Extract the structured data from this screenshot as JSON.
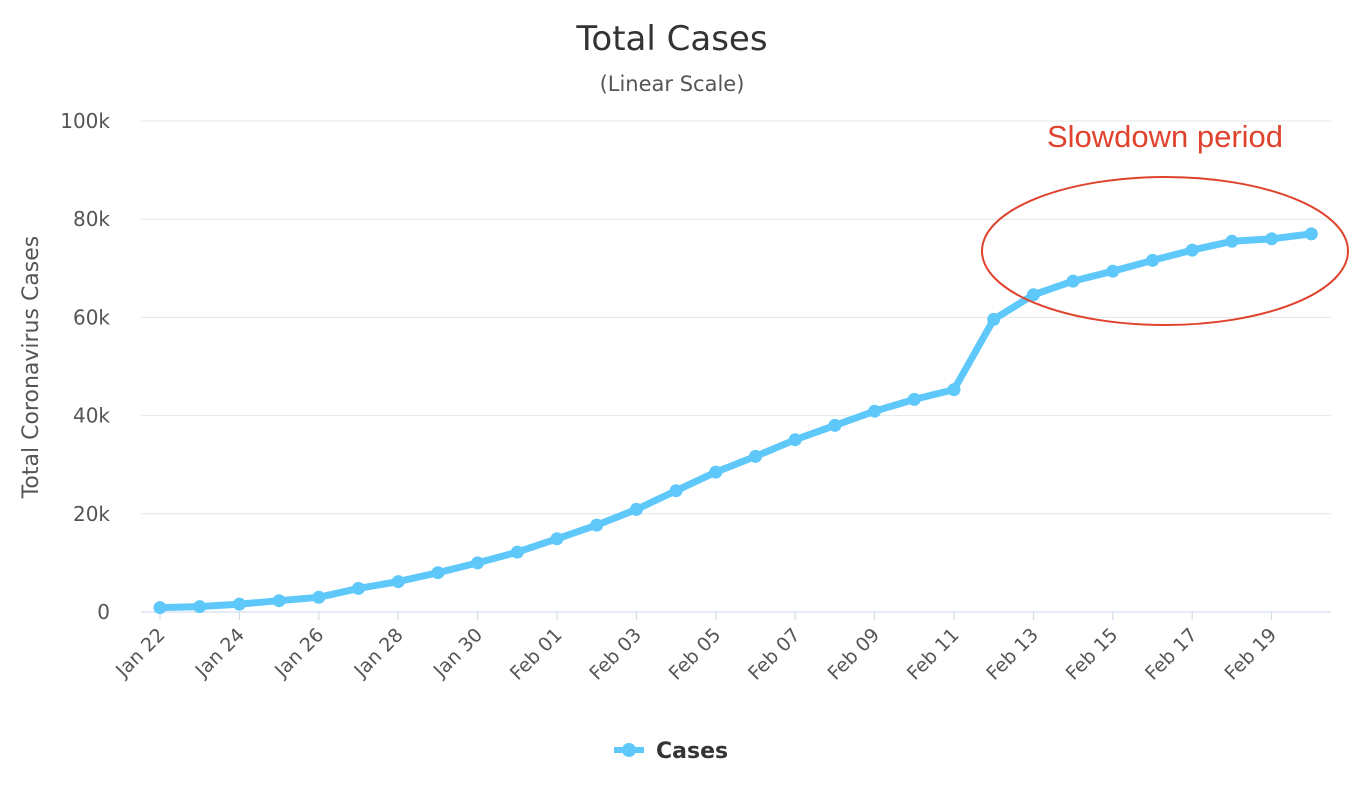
{
  "colors": {
    "series": "#5ec8fa",
    "annotation": "#e0432d",
    "grid": "#e6e6e6",
    "axis": "#ccd6eb"
  },
  "chart_data": {
    "type": "line",
    "title": "Total Cases",
    "subtitle": "(Linear Scale)",
    "xlabel": "",
    "ylabel": "Total Coronavirus Cases",
    "ylim": [
      0,
      100000
    ],
    "y_ticks": [
      {
        "value": 0,
        "label": "0"
      },
      {
        "value": 20000,
        "label": "20k"
      },
      {
        "value": 40000,
        "label": "40k"
      },
      {
        "value": 60000,
        "label": "60k"
      },
      {
        "value": 80000,
        "label": "80k"
      },
      {
        "value": 100000,
        "label": "100k"
      }
    ],
    "grid": true,
    "legend": "bottom-center",
    "categories": [
      "Jan 22",
      "Jan 23",
      "Jan 24",
      "Jan 25",
      "Jan 26",
      "Jan 27",
      "Jan 28",
      "Jan 29",
      "Jan 30",
      "Jan 31",
      "Feb 01",
      "Feb 02",
      "Feb 03",
      "Feb 04",
      "Feb 05",
      "Feb 06",
      "Feb 07",
      "Feb 08",
      "Feb 09",
      "Feb 10",
      "Feb 11",
      "Feb 12",
      "Feb 13",
      "Feb 14",
      "Feb 15",
      "Feb 16",
      "Feb 17",
      "Feb 18",
      "Feb 19",
      "Feb 20"
    ],
    "x_tick_labels": [
      "Jan 22",
      "Jan 24",
      "Jan 26",
      "Jan 28",
      "Jan 30",
      "Feb 01",
      "Feb 03",
      "Feb 05",
      "Feb 07",
      "Feb 09",
      "Feb 11",
      "Feb 13",
      "Feb 15",
      "Feb 17",
      "Feb 19"
    ],
    "series": [
      {
        "name": "Cases",
        "values": [
          900,
          1100,
          1600,
          2300,
          3000,
          4800,
          6200,
          8000,
          10000,
          12200,
          14900,
          17700,
          20900,
          24700,
          28500,
          31700,
          35100,
          38000,
          40900,
          43300,
          45300,
          59600,
          64600,
          67400,
          69400,
          71600,
          73700,
          75500,
          76000,
          77000
        ]
      }
    ],
    "annotations": [
      {
        "text": "Slowdown period"
      }
    ]
  }
}
